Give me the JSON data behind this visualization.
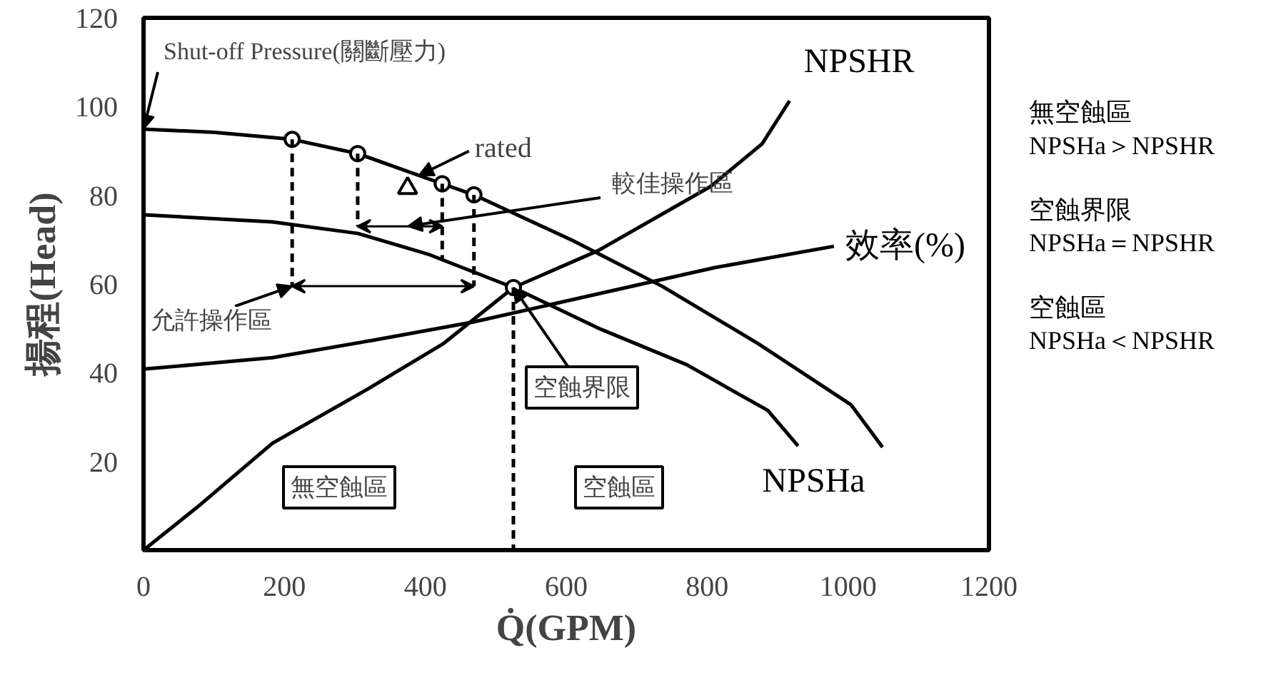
{
  "chart_data": {
    "type": "line",
    "xlabel": "Q̇(GPM)",
    "ylabel": "揚程(Head)",
    "xlim": [
      0,
      1200
    ],
    "ylim": [
      0,
      120
    ],
    "xticks": [
      0,
      200,
      400,
      600,
      800,
      1000,
      1200
    ],
    "yticks": [
      20,
      40,
      60,
      80,
      100,
      120
    ],
    "grid": false,
    "series": [
      {
        "color": "#000000",
        "x": [
          0,
          101,
          211,
          304,
          424,
          469,
          609,
          736,
          872,
          1004,
          1049
        ],
        "values": [
          94.9,
          94.2,
          92.6,
          89.4,
          82.6,
          80.1,
          69.8,
          59.5,
          46.6,
          32.8,
          23.2
        ]
      },
      {
        "name": "NPSHa",
        "color": "#000000",
        "x": [
          0,
          183,
          304,
          406,
          525,
          649,
          771,
          886,
          929
        ],
        "values": [
          75.6,
          74.0,
          71.4,
          66.6,
          59.2,
          49.8,
          41.8,
          31.5,
          23.5
        ]
      },
      {
        "name": "NPSHR",
        "color": "#000000",
        "x": [
          0,
          81,
          183,
          318,
          426,
          525,
          645,
          805,
          878,
          917
        ],
        "values": [
          0,
          10.3,
          24.1,
          36.3,
          46.6,
          59.2,
          67.5,
          82.0,
          91.6,
          101.3
        ]
      },
      {
        "name": "效率(%)",
        "color": "#000000",
        "x": [
          0,
          183,
          325,
          467,
          649,
          811,
          980
        ],
        "values": [
          40.8,
          43.4,
          47.3,
          51.4,
          57.9,
          63.7,
          68.5
        ]
      },
      {
        "type": "scatter",
        "marker": "circle",
        "color": "#000000",
        "x": [
          211,
          304,
          424,
          469,
          525
        ],
        "values": [
          92.6,
          89.4,
          82.6,
          80.1,
          59.2
        ]
      },
      {
        "line_style": "dashed",
        "color": "#000000",
        "x": [
          211,
          211
        ],
        "values": [
          92.6,
          59.5
        ]
      },
      {
        "line_style": "dashed",
        "color": "#000000",
        "x": [
          304,
          304
        ],
        "values": [
          89.4,
          73
        ]
      },
      {
        "line_style": "dashed",
        "color": "#000000",
        "x": [
          424,
          424
        ],
        "values": [
          82.6,
          65.3
        ]
      },
      {
        "line_style": "dashed",
        "color": "#000000",
        "x": [
          469,
          469
        ],
        "values": [
          80.1,
          59.5
        ]
      },
      {
        "line_style": "dashed",
        "color": "#000000",
        "x": [
          525,
          525
        ],
        "values": [
          59.2,
          0
        ]
      }
    ],
    "annotations": [
      {
        "text": "Shut-off Pressure(關斷壓力)",
        "x": 0,
        "y": 94.9
      },
      {
        "text": "允許操作區",
        "x": 211,
        "y": 59.5
      },
      {
        "text": "rated",
        "x": 391,
        "y": 84.5
      },
      {
        "text": "空蝕界限",
        "x": 525,
        "y": 59.2
      },
      "較佳操作區",
      "無空蝕區",
      "空蝕區",
      "無空蝕區",
      "NPSHa＞NPSHR",
      "空蝕界限",
      "NPSHa＝NPSHR",
      "空蝕區",
      "NPSHa＜NPSHR"
    ]
  }
}
